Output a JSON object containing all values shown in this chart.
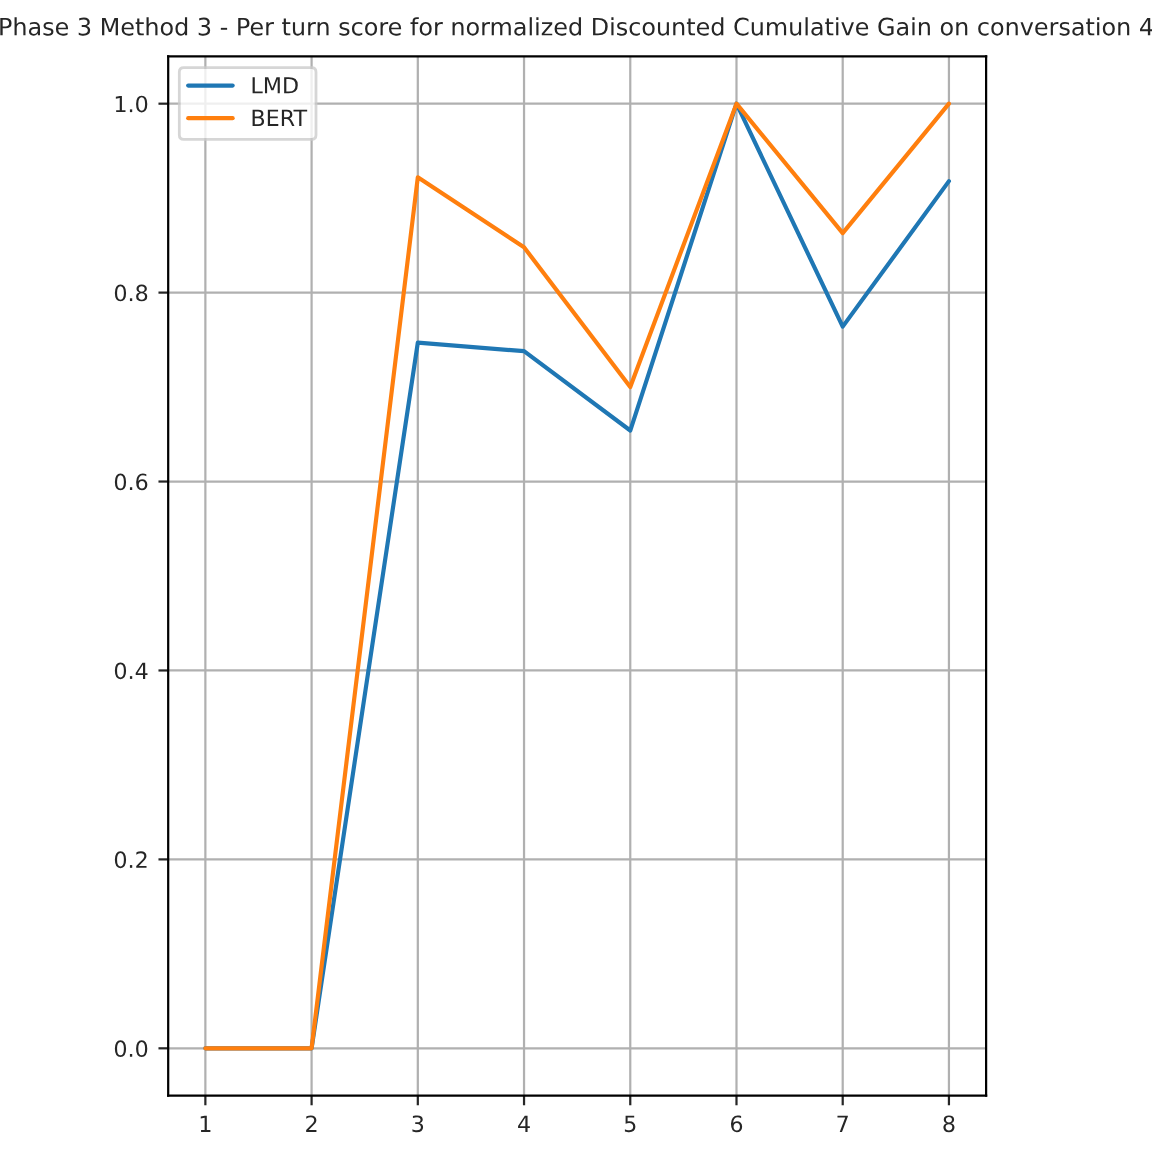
{
  "chart_data": {
    "type": "line",
    "title": "Phase 3 Method 3 - Per turn score for normalized Discounted Cumulative Gain on conversation 4",
    "x": [
      1,
      2,
      3,
      4,
      5,
      6,
      7,
      8
    ],
    "series": [
      {
        "name": "LMD",
        "color": "#1f77b4",
        "values": [
          0,
          0,
          0.747,
          0.738,
          0.654,
          1.0,
          0.764,
          0.918
        ]
      },
      {
        "name": "BERT",
        "color": "#ff7f0e",
        "values": [
          0,
          0,
          0.922,
          0.848,
          0.7,
          1.0,
          0.863,
          1.0
        ]
      }
    ],
    "xlim": [
      0.65,
      8.35
    ],
    "xticks": [
      1,
      2,
      3,
      4,
      5,
      6,
      7,
      8
    ],
    "ylim": [
      -0.05,
      1.05
    ],
    "yticks": [
      {
        "value": 0,
        "label": "0.0"
      },
      {
        "value": 0.2,
        "label": "0.2"
      },
      {
        "value": 0.4,
        "label": "0.4"
      },
      {
        "value": 0.6,
        "label": "0.6"
      },
      {
        "value": 0.8,
        "label": "0.8"
      },
      {
        "value": 1.0,
        "label": "1.0"
      }
    ],
    "grid": true,
    "legend": "top left"
  }
}
